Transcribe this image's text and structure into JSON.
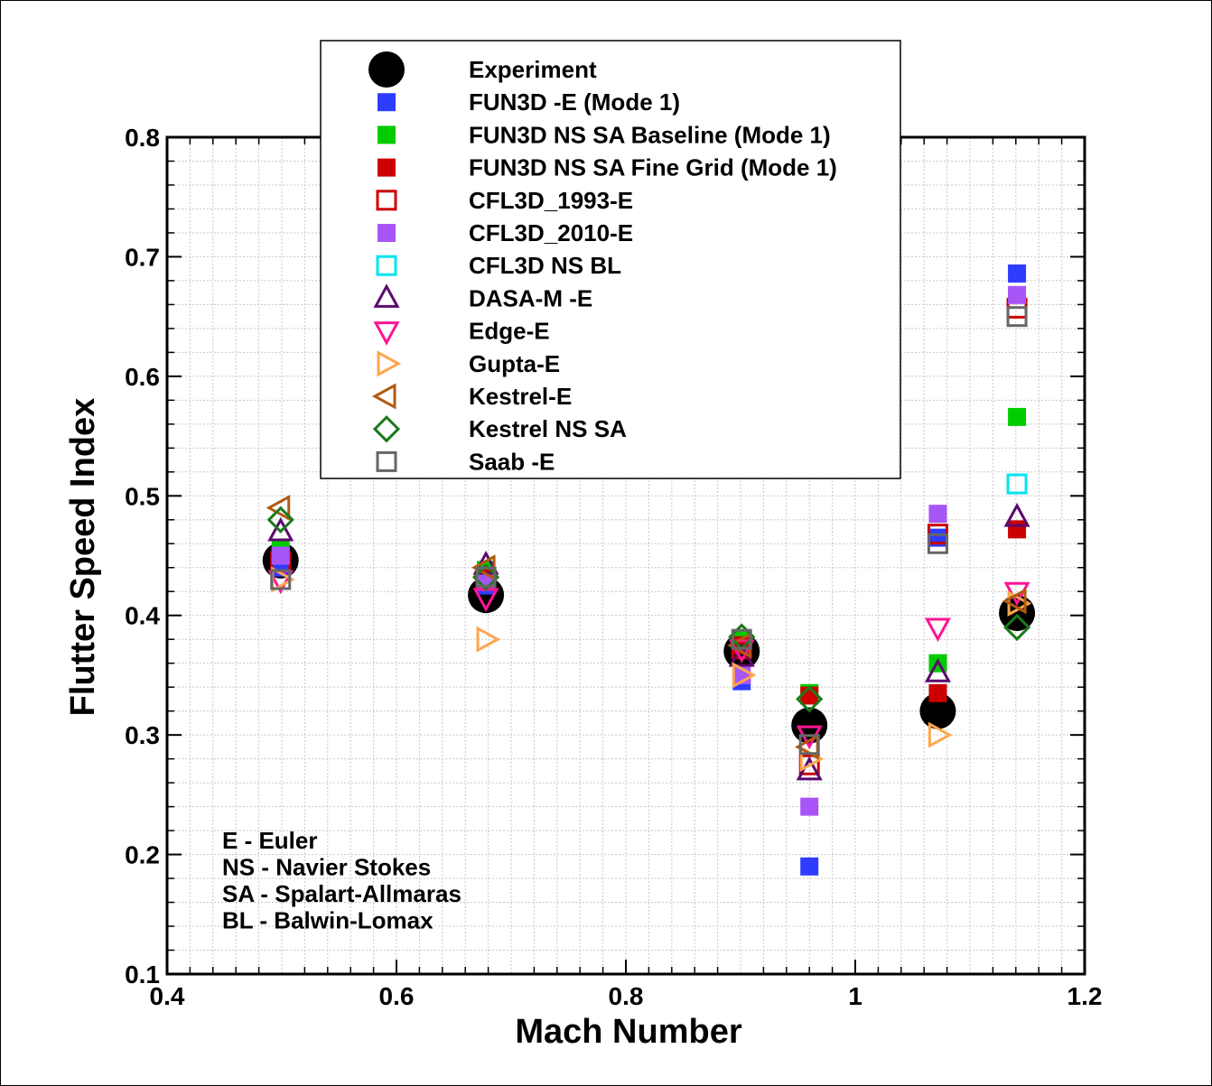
{
  "chart_data": {
    "type": "scatter",
    "xlabel": "Mach Number",
    "ylabel": "Flutter Speed Index",
    "xlim": [
      0.4,
      1.2
    ],
    "ylim": [
      0.1,
      0.8
    ],
    "xticks": [
      0.4,
      0.6,
      0.8,
      1.0,
      1.2
    ],
    "xtick_labels": [
      "0.4",
      "0.6",
      "0.8",
      "1",
      "1.2"
    ],
    "yticks": [
      0.1,
      0.2,
      0.3,
      0.4,
      0.5,
      0.6,
      0.7,
      0.8
    ],
    "ytick_labels": [
      "0.1",
      "0.2",
      "0.3",
      "0.4",
      "0.5",
      "0.6",
      "0.7",
      "0.8"
    ],
    "grid": true,
    "legend_position": "top-center",
    "notes": [
      "E - Euler",
      "NS - Navier Stokes",
      "SA - Spalart-Allmaras",
      "BL - Balwin-Lomax"
    ],
    "series": [
      {
        "name": "Experiment",
        "marker": "circle-filled",
        "color": "#000000",
        "points": [
          [
            0.499,
            0.446
          ],
          [
            0.678,
            0.417
          ],
          [
            0.901,
            0.37
          ],
          [
            0.96,
            0.308
          ],
          [
            1.072,
            0.32
          ],
          [
            1.141,
            0.402
          ]
        ]
      },
      {
        "name": "FUN3D -E (Mode 1)",
        "marker": "square-filled",
        "color": "#2d3cff",
        "points": [
          [
            0.499,
            0.44
          ],
          [
            0.678,
            0.425
          ],
          [
            0.901,
            0.345
          ],
          [
            0.96,
            0.19
          ],
          [
            1.072,
            0.465
          ],
          [
            1.141,
            0.686
          ]
        ]
      },
      {
        "name": "FUN3D NS SA Baseline (Mode 1)",
        "marker": "square-filled",
        "color": "#00cc00",
        "points": [
          [
            0.499,
            0.455
          ],
          [
            0.678,
            0.438
          ],
          [
            0.901,
            0.38
          ],
          [
            0.96,
            0.335
          ],
          [
            1.072,
            0.36
          ],
          [
            1.141,
            0.566
          ]
        ]
      },
      {
        "name": "FUN3D NS SA Fine Grid (Mode 1)",
        "marker": "square-filled",
        "color": "#cc0000",
        "points": [
          [
            0.499,
            0.45
          ],
          [
            0.678,
            0.432
          ],
          [
            0.901,
            0.375
          ],
          [
            0.96,
            0.333
          ],
          [
            1.072,
            0.335
          ],
          [
            1.141,
            0.472
          ]
        ]
      },
      {
        "name": "CFL3D_1993-E",
        "marker": "square-open",
        "color": "#cc0000",
        "points": [
          [
            0.499,
            0.445
          ],
          [
            0.678,
            0.43
          ],
          [
            0.901,
            0.372
          ],
          [
            0.96,
            0.275
          ],
          [
            1.072,
            0.468
          ],
          [
            1.141,
            0.657
          ]
        ]
      },
      {
        "name": "CFL3D_2010-E",
        "marker": "square-filled",
        "color": "#a855f7",
        "points": [
          [
            0.499,
            0.45
          ],
          [
            0.678,
            0.428
          ],
          [
            0.901,
            0.35
          ],
          [
            0.96,
            0.24
          ],
          [
            1.072,
            0.485
          ],
          [
            1.141,
            0.668
          ]
        ]
      },
      {
        "name": "CFL3D NS BL",
        "marker": "square-open",
        "color": "#00e5ee",
        "points": [
          [
            1.141,
            0.51
          ]
        ]
      },
      {
        "name": "DASA-M -E",
        "marker": "triangle-up-open",
        "color": "#5b0a6e",
        "points": [
          [
            0.499,
            0.47
          ],
          [
            0.678,
            0.442
          ],
          [
            0.901,
            0.365
          ],
          [
            0.96,
            0.27
          ],
          [
            1.072,
            0.352
          ],
          [
            1.141,
            0.482
          ]
        ]
      },
      {
        "name": "Edge-E",
        "marker": "triangle-down-open",
        "color": "#ff1493",
        "points": [
          [
            0.499,
            0.43
          ],
          [
            0.678,
            0.415
          ],
          [
            0.901,
            0.372
          ],
          [
            0.96,
            0.3
          ],
          [
            1.072,
            0.39
          ],
          [
            1.141,
            0.42
          ]
        ]
      },
      {
        "name": "Gupta-E",
        "marker": "triangle-right-open",
        "color": "#ffa64d",
        "points": [
          [
            0.499,
            0.43
          ],
          [
            0.678,
            0.38
          ],
          [
            0.901,
            0.35
          ],
          [
            0.96,
            0.28
          ],
          [
            1.072,
            0.3
          ],
          [
            1.141,
            0.41
          ]
        ]
      },
      {
        "name": "Kestrel-E",
        "marker": "triangle-left-open",
        "color": "#b05a10",
        "points": [
          [
            0.499,
            0.49
          ],
          [
            0.678,
            0.44
          ],
          [
            0.901,
            0.375
          ],
          [
            0.96,
            0.29
          ],
          [
            1.141,
            0.412
          ]
        ]
      },
      {
        "name": "Kestrel NS SA",
        "marker": "diamond-open",
        "color": "#1a7a1a",
        "points": [
          [
            0.499,
            0.48
          ],
          [
            0.678,
            0.432
          ],
          [
            0.901,
            0.382
          ],
          [
            0.96,
            0.33
          ],
          [
            1.141,
            0.39
          ]
        ]
      },
      {
        "name": "Saab -E",
        "marker": "square-open",
        "color": "#666666",
        "points": [
          [
            0.499,
            0.43
          ],
          [
            0.678,
            0.432
          ],
          [
            0.901,
            0.38
          ],
          [
            0.96,
            0.292
          ],
          [
            1.072,
            0.46
          ],
          [
            1.141,
            0.65
          ]
        ]
      }
    ]
  }
}
